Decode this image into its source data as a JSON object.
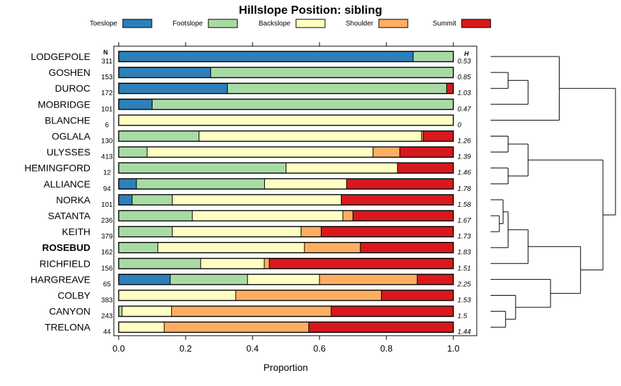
{
  "chart_data": {
    "type": "bar",
    "orientation": "horizontal",
    "stacked": true,
    "title": "Hillslope Position: sibling",
    "xlabel": "Proportion",
    "xlim": [
      0,
      1
    ],
    "xticks": [
      "0.0",
      "0.2",
      "0.4",
      "0.6",
      "0.8",
      "1.0"
    ],
    "n_header": "N",
    "h_header": "H",
    "legend": [
      {
        "name": "Toeslope",
        "color": "#2c7fb8"
      },
      {
        "name": "Footslope",
        "color": "#a8dba4"
      },
      {
        "name": "Backslope",
        "color": "#ffffc2"
      },
      {
        "name": "Shoulder",
        "color": "#fdae61"
      },
      {
        "name": "Summit",
        "color": "#d7191c"
      }
    ],
    "rows": [
      {
        "label": "LODGEPOLE",
        "n": "311",
        "h": "0.53",
        "bold": false,
        "values": [
          0.88,
          0.12,
          0,
          0,
          0
        ]
      },
      {
        "label": "GOSHEN",
        "n": "153",
        "h": "0.85",
        "bold": false,
        "values": [
          0.275,
          0.725,
          0,
          0,
          0
        ]
      },
      {
        "label": "DUROC",
        "n": "172",
        "h": "1.03",
        "bold": false,
        "values": [
          0.325,
          0.655,
          0,
          0,
          0.02
        ]
      },
      {
        "label": "MOBRIDGE",
        "n": "101",
        "h": "0.47",
        "bold": false,
        "values": [
          0.1,
          0.9,
          0,
          0,
          0
        ]
      },
      {
        "label": "BLANCHE",
        "n": "6",
        "h": "0",
        "bold": false,
        "values": [
          0,
          0,
          1,
          0,
          0
        ]
      },
      {
        "label": "OGLALA",
        "n": "130",
        "h": "1.26",
        "bold": false,
        "values": [
          0,
          0.24,
          0.665,
          0.005,
          0.09
        ]
      },
      {
        "label": "ULYSSES",
        "n": "413",
        "h": "1.39",
        "bold": false,
        "values": [
          0,
          0.085,
          0.675,
          0.08,
          0.16
        ]
      },
      {
        "label": "HEMINGFORD",
        "n": "12",
        "h": "1.46",
        "bold": false,
        "values": [
          0,
          0.5,
          0.333,
          0,
          0.167
        ]
      },
      {
        "label": "ALLIANCE",
        "n": "94",
        "h": "1.78",
        "bold": false,
        "values": [
          0.053,
          0.383,
          0.245,
          0,
          0.319
        ]
      },
      {
        "label": "NORKA",
        "n": "101",
        "h": "1.58",
        "bold": false,
        "values": [
          0.04,
          0.12,
          0.505,
          0,
          0.335
        ]
      },
      {
        "label": "SATANTA",
        "n": "236",
        "h": "1.67",
        "bold": false,
        "values": [
          0,
          0.22,
          0.45,
          0.03,
          0.3
        ]
      },
      {
        "label": "KEITH",
        "n": "379",
        "h": "1.73",
        "bold": false,
        "values": [
          0,
          0.16,
          0.385,
          0.06,
          0.395
        ]
      },
      {
        "label": "ROSEBUD",
        "n": "162",
        "h": "1.83",
        "bold": true,
        "values": [
          0,
          0.117,
          0.438,
          0.167,
          0.278
        ]
      },
      {
        "label": "RICHFIELD",
        "n": "156",
        "h": "1.51",
        "bold": false,
        "values": [
          0,
          0.245,
          0.19,
          0.015,
          0.55
        ]
      },
      {
        "label": "HARGREAVE",
        "n": "65",
        "h": "2.25",
        "bold": false,
        "values": [
          0.154,
          0.231,
          0.215,
          0.292,
          0.108
        ]
      },
      {
        "label": "COLBY",
        "n": "383",
        "h": "1.53",
        "bold": false,
        "values": [
          0,
          0,
          0.35,
          0.435,
          0.215
        ]
      },
      {
        "label": "CANYON",
        "n": "243",
        "h": "1.5",
        "bold": false,
        "values": [
          0,
          0.01,
          0.148,
          0.477,
          0.365
        ]
      },
      {
        "label": "TRELONA",
        "n": "44",
        "h": "1.44",
        "bold": false,
        "values": [
          0,
          0,
          0.136,
          0.432,
          0.432
        ]
      }
    ],
    "dendrogram": [
      {
        "a": 1,
        "b": 2,
        "h": 0.14
      },
      {
        "a": -1,
        "b": 3,
        "h": 0.3
      },
      {
        "a": 0,
        "b": 4,
        "h": 0.55
      },
      {
        "a": 5,
        "b": 6,
        "h": 0.14
      },
      {
        "a": 7,
        "b": 8,
        "h": 0.14
      },
      {
        "a": 10,
        "b": 11,
        "h": 0.07
      },
      {
        "a": 9,
        "b": -6,
        "h": 0.1
      },
      {
        "a": -7,
        "b": 12,
        "h": 0.14
      },
      {
        "a": -4,
        "b": -5,
        "h": 0.3
      },
      {
        "a": -8,
        "b": 13,
        "h": 0.3
      },
      {
        "a": 16,
        "b": 17,
        "h": 0.12
      },
      {
        "a": 15,
        "b": -11,
        "h": 0.2
      },
      {
        "a": 14,
        "b": -12,
        "h": 0.48
      },
      {
        "a": -10,
        "b": -13,
        "h": 0.72
      },
      {
        "a": -9,
        "b": -14,
        "h": 0.9
      },
      {
        "a": -3,
        "b": -15,
        "h": 1.0
      }
    ]
  }
}
